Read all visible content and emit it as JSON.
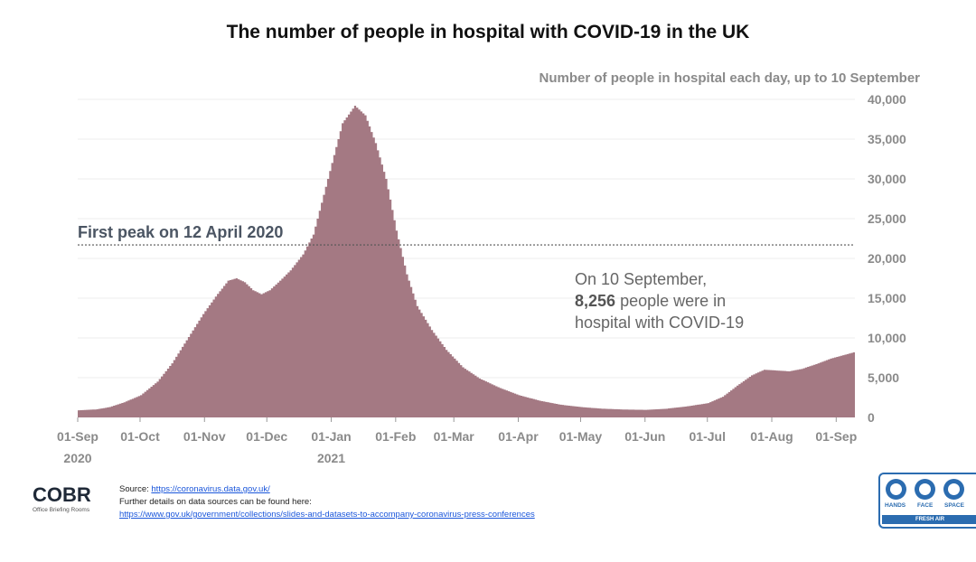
{
  "chart_data": {
    "type": "area",
    "title": "The number of people in hospital with COVID-19 in the UK",
    "subtitle": "Number of people in hospital each day, up to 10 September",
    "color": "#a47983",
    "ylim": [
      0,
      40000
    ],
    "yticks": [
      0,
      5000,
      10000,
      15000,
      20000,
      25000,
      30000,
      35000,
      40000
    ],
    "ytick_labels": [
      "0",
      "5,000",
      "10,000",
      "15,000",
      "20,000",
      "25,000",
      "30,000",
      "35,000",
      "40,000"
    ],
    "xlim_days": [
      0,
      374
    ],
    "xticks": [
      {
        "day": 0,
        "label": "01-Sep",
        "year": "2020"
      },
      {
        "day": 30,
        "label": "01-Oct"
      },
      {
        "day": 61,
        "label": "01-Nov"
      },
      {
        "day": 91,
        "label": "01-Dec"
      },
      {
        "day": 122,
        "label": "01-Jan",
        "year": "2021"
      },
      {
        "day": 153,
        "label": "01-Feb"
      },
      {
        "day": 181,
        "label": "01-Mar"
      },
      {
        "day": 212,
        "label": "01-Apr"
      },
      {
        "day": 242,
        "label": "01-May"
      },
      {
        "day": 273,
        "label": "01-Jun"
      },
      {
        "day": 303,
        "label": "01-Jul"
      },
      {
        "day": 334,
        "label": "01-Aug"
      },
      {
        "day": 365,
        "label": "01-Sep"
      }
    ],
    "series": [
      {
        "name": "People in hospital",
        "points": [
          [
            0,
            900
          ],
          [
            8,
            1000
          ],
          [
            15,
            1300
          ],
          [
            22,
            1900
          ],
          [
            30,
            2800
          ],
          [
            38,
            4500
          ],
          [
            45,
            6800
          ],
          [
            52,
            9700
          ],
          [
            60,
            13000
          ],
          [
            66,
            15200
          ],
          [
            72,
            17200
          ],
          [
            76,
            17500
          ],
          [
            80,
            17000
          ],
          [
            84,
            16000
          ],
          [
            88,
            15500
          ],
          [
            92,
            16000
          ],
          [
            97,
            17200
          ],
          [
            102,
            18500
          ],
          [
            108,
            20500
          ],
          [
            113,
            23000
          ],
          [
            118,
            28000
          ],
          [
            122,
            32000
          ],
          [
            127,
            37000
          ],
          [
            133,
            39200
          ],
          [
            138,
            38000
          ],
          [
            143,
            34500
          ],
          [
            148,
            30000
          ],
          [
            153,
            23500
          ],
          [
            158,
            18000
          ],
          [
            163,
            14000
          ],
          [
            170,
            11000
          ],
          [
            177,
            8500
          ],
          [
            185,
            6300
          ],
          [
            193,
            4900
          ],
          [
            202,
            3800
          ],
          [
            212,
            2800
          ],
          [
            222,
            2100
          ],
          [
            232,
            1600
          ],
          [
            242,
            1300
          ],
          [
            252,
            1100
          ],
          [
            262,
            1000
          ],
          [
            273,
            950
          ],
          [
            283,
            1100
          ],
          [
            293,
            1400
          ],
          [
            303,
            1800
          ],
          [
            310,
            2600
          ],
          [
            317,
            4000
          ],
          [
            324,
            5300
          ],
          [
            330,
            6000
          ],
          [
            336,
            5900
          ],
          [
            342,
            5800
          ],
          [
            348,
            6100
          ],
          [
            355,
            6700
          ],
          [
            362,
            7400
          ],
          [
            374,
            8256
          ]
        ]
      }
    ],
    "annotations": [
      {
        "type": "hline",
        "value": 21700,
        "label": "First peak on 12 April 2020"
      },
      {
        "type": "text",
        "prefix": "On 10 September,",
        "bold": "8,256",
        "suffix": "people were in hospital with COVID-19"
      }
    ]
  },
  "footer": {
    "logo_text": "COBR",
    "logo_subtext": "Office Briefing Rooms",
    "source_label": "Source:",
    "source_url": "https://coronavirus.data.gov.uk/",
    "further_label": "Further details on data sources can be found here:",
    "further_url": "https://www.gov.uk/government/collections/slides-and-datasets-to-accompany-coronavirus-press-conferences"
  },
  "badge": {
    "items": [
      "HANDS",
      "FACE",
      "SPACE"
    ],
    "strip": "FRESH AIR",
    "accent": "#2b6cb0"
  }
}
